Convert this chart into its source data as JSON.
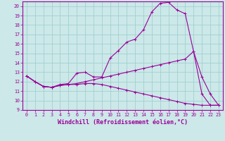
{
  "xlabel": "Windchill (Refroidissement éolien,°C)",
  "background_color": "#cce8e8",
  "line_color": "#990099",
  "xlim": [
    -0.5,
    23.5
  ],
  "ylim": [
    9,
    20.5
  ],
  "yticks": [
    9,
    10,
    11,
    12,
    13,
    14,
    15,
    16,
    17,
    18,
    19,
    20
  ],
  "xticks": [
    0,
    1,
    2,
    3,
    4,
    5,
    6,
    7,
    8,
    9,
    10,
    11,
    12,
    13,
    14,
    15,
    16,
    17,
    18,
    19,
    20,
    21,
    22,
    23
  ],
  "lines": [
    {
      "x": [
        0,
        1,
        2,
        3,
        4,
        5,
        6,
        7,
        8,
        9,
        10,
        11,
        12,
        13,
        14,
        15,
        16,
        17,
        18,
        19,
        20,
        21,
        22,
        23
      ],
      "y": [
        12.6,
        12.0,
        11.5,
        11.4,
        11.6,
        11.7,
        11.7,
        11.8,
        11.8,
        11.7,
        11.5,
        11.3,
        11.1,
        10.9,
        10.7,
        10.5,
        10.3,
        10.1,
        9.9,
        9.7,
        9.6,
        9.5,
        9.5,
        9.5
      ],
      "marker": "+"
    },
    {
      "x": [
        0,
        1,
        2,
        3,
        4,
        5,
        6,
        7,
        8,
        9,
        10,
        11,
        12,
        13,
        14,
        15,
        16,
        17,
        18,
        19,
        20,
        21,
        22,
        23
      ],
      "y": [
        12.6,
        12.0,
        11.5,
        11.4,
        11.6,
        11.7,
        11.8,
        12.0,
        12.2,
        12.4,
        12.6,
        12.8,
        13.0,
        13.2,
        13.4,
        13.6,
        13.8,
        14.0,
        14.2,
        14.4,
        15.2,
        12.5,
        10.7,
        9.5
      ],
      "marker": "+"
    },
    {
      "x": [
        0,
        1,
        2,
        3,
        4,
        5,
        6,
        7,
        8,
        9,
        10,
        11,
        12,
        13,
        14,
        15,
        16,
        17,
        18,
        19,
        20,
        21,
        22,
        23
      ],
      "y": [
        12.6,
        12.0,
        11.5,
        11.4,
        11.7,
        11.8,
        12.9,
        13.0,
        12.5,
        12.5,
        14.5,
        15.3,
        16.2,
        16.5,
        17.5,
        19.4,
        20.3,
        20.4,
        19.6,
        19.2,
        15.2,
        10.7,
        9.5,
        9.5
      ],
      "marker": "+"
    }
  ],
  "grid_color": "#99cccc",
  "tick_fontsize": 4.8,
  "label_fontsize": 6.0
}
